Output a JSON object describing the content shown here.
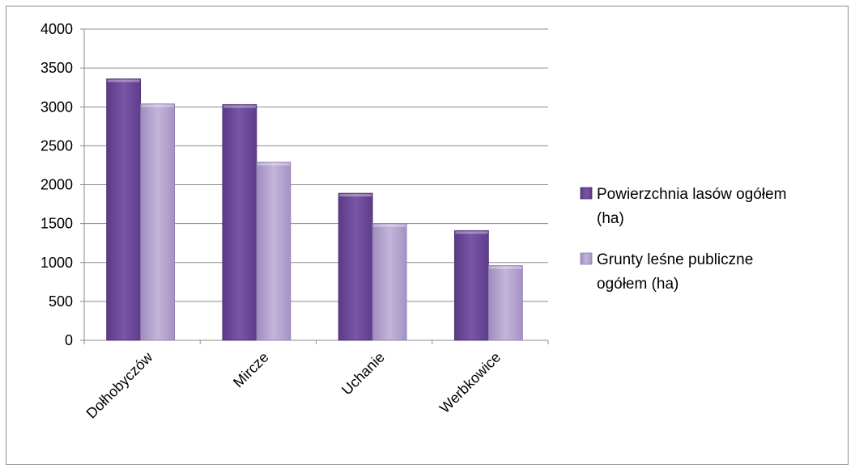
{
  "chart_data": {
    "type": "bar",
    "title": "",
    "xlabel": "",
    "ylabel": "",
    "categories": [
      "Dołhobyczów",
      "Mircze",
      "Uchanie",
      "Werbkowice"
    ],
    "series": [
      {
        "name": "Powierzchnia lasów ogółem (ha)",
        "legend_lines": [
          "Powierzchnia lasów ogółem",
          "(ha)"
        ],
        "color": "#6f4a9c",
        "values": [
          3360,
          3030,
          1890,
          1410
        ]
      },
      {
        "name": "Grunty leśne publiczne ogółem (ha)",
        "legend_lines": [
          "Grunty leśne publiczne",
          "ogółem (ha)"
        ],
        "color": "#b7a7cf",
        "values": [
          3040,
          2290,
          1500,
          960
        ]
      }
    ],
    "ylim": [
      0,
      4000
    ],
    "yticks": [
      0,
      500,
      1000,
      1500,
      2000,
      2500,
      3000,
      3500,
      4000
    ],
    "grid": true,
    "legend_position": "right"
  }
}
